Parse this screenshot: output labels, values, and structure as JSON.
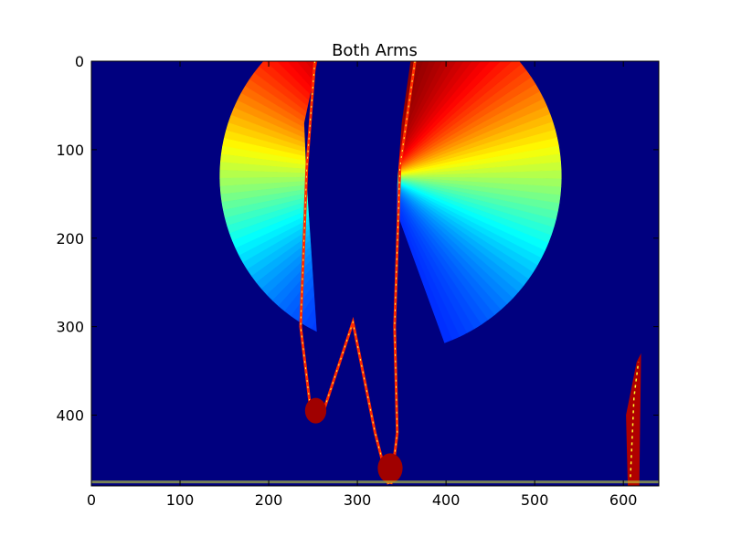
{
  "chart_data": {
    "type": "heatmap",
    "title": "Both Arms",
    "xlabel": "",
    "ylabel": "",
    "xlim": [
      0,
      640
    ],
    "ylim": [
      0,
      480
    ],
    "y_inverted": true,
    "x_ticks": [
      0,
      100,
      200,
      300,
      400,
      500,
      600
    ],
    "y_ticks": [
      0,
      100,
      200,
      300,
      400
    ],
    "colormap": "jet",
    "background_color": "#00007f",
    "grid": false,
    "regions": [
      {
        "label": "left-arm-sweep",
        "center": [
          340,
          130
        ],
        "radius": 195,
        "angle_start": 90,
        "angle_end": 250,
        "color_low": "#0000ff",
        "color_high": "#ff0000"
      },
      {
        "label": "right-arm-sweep",
        "center": [
          330,
          130
        ],
        "radius": 200,
        "angle_start": -70,
        "angle_end": 90,
        "color_low": "#0000ff",
        "color_high": "#ff0000"
      },
      {
        "label": "body-outline",
        "x_range": [
          240,
          440
        ],
        "y_range": [
          0,
          480
        ]
      },
      {
        "label": "edge-noise-right",
        "x_range": [
          595,
          620
        ],
        "y_range": [
          325,
          480
        ]
      },
      {
        "label": "floor-noise",
        "x_range": [
          0,
          640
        ],
        "y_range": [
          470,
          480
        ]
      }
    ]
  }
}
